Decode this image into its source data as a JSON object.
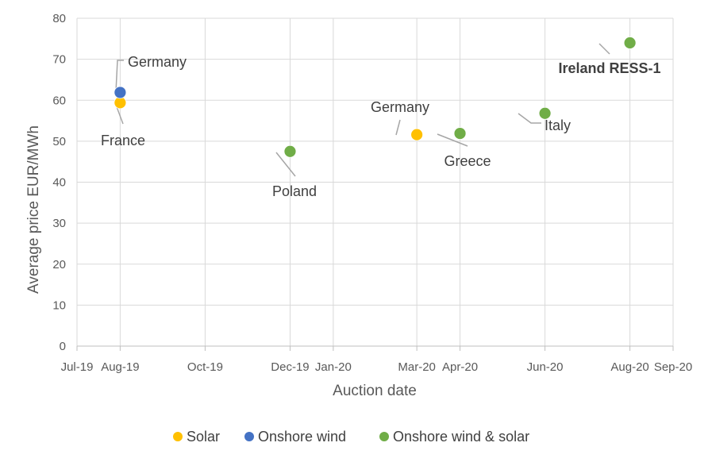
{
  "chart_data": {
    "type": "scatter",
    "title": "",
    "xlabel": "Auction date",
    "ylabel": "Average price EUR/MWh",
    "xlim": [
      "2019-07-01",
      "2020-09-01"
    ],
    "ylim": [
      0,
      80
    ],
    "xticks": [
      {
        "date": "2019-07-01",
        "label": "Jul-19"
      },
      {
        "date": "2019-08-01",
        "label": "Aug-19"
      },
      {
        "date": "2019-10-01",
        "label": "Oct-19"
      },
      {
        "date": "2019-12-01",
        "label": "Dec-19"
      },
      {
        "date": "2020-01-01",
        "label": "Jan-20"
      },
      {
        "date": "2020-03-01",
        "label": "Mar-20"
      },
      {
        "date": "2020-04-01",
        "label": "Apr-20"
      },
      {
        "date": "2020-06-01",
        "label": "Jun-20"
      },
      {
        "date": "2020-08-01",
        "label": "Aug-20"
      },
      {
        "date": "2020-09-01",
        "label": "Sep-20"
      }
    ],
    "yticks": [
      0,
      10,
      20,
      30,
      40,
      50,
      60,
      70,
      80
    ],
    "grid": true,
    "legend_position": "bottom",
    "series": [
      {
        "name": "Solar",
        "color": "#FFC000",
        "points": [
          {
            "x": "2019-08-01",
            "y": 59.4,
            "label": "France"
          },
          {
            "x": "2020-03-01",
            "y": 51.6,
            "label": "Germany"
          }
        ]
      },
      {
        "name": "Onshore wind",
        "color": "#4472C4",
        "points": [
          {
            "x": "2019-08-01",
            "y": 61.9,
            "label": "Germany"
          }
        ]
      },
      {
        "name": "Onshore wind & solar",
        "color": "#70AD47",
        "points": [
          {
            "x": "2019-12-01",
            "y": 47.5,
            "label": "Poland"
          },
          {
            "x": "2020-04-01",
            "y": 51.9,
            "label": "Greece"
          },
          {
            "x": "2020-06-01",
            "y": 56.8,
            "label": "Italy"
          },
          {
            "x": "2020-08-01",
            "y": 74.0,
            "label": "Ireland RESS-1",
            "bold": true
          }
        ]
      }
    ]
  }
}
